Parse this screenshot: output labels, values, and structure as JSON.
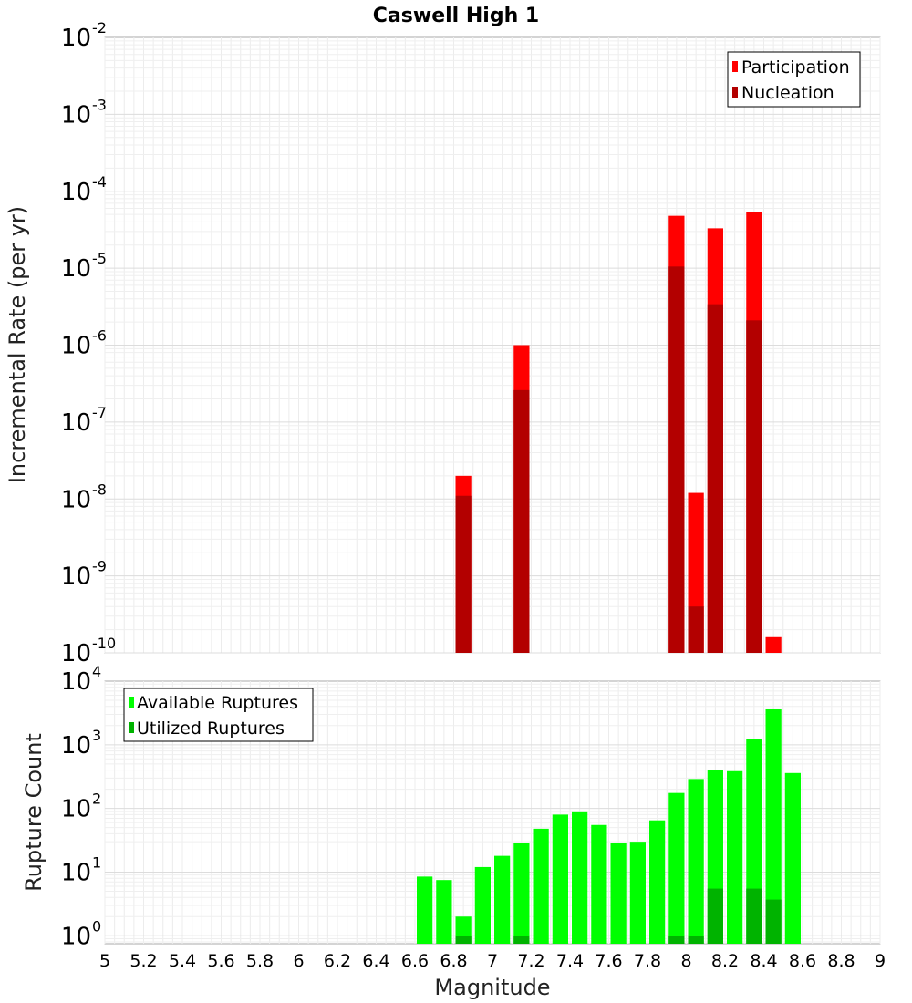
{
  "title": "Caswell High 1",
  "colors": {
    "participation": "#ff0000",
    "nucleation": "#b30000",
    "available": "#00ff00",
    "utilized": "#00b300"
  },
  "chart_data": [
    {
      "type": "bar",
      "scale": "log",
      "ylabel": "Incremental Rate (per yr)",
      "ylim": [
        1e-10,
        0.01
      ],
      "y_ticks": [
        {
          "base": "10",
          "exp": "-10"
        },
        {
          "base": "10",
          "exp": "-9"
        },
        {
          "base": "10",
          "exp": "-8"
        },
        {
          "base": "10",
          "exp": "-7"
        },
        {
          "base": "10",
          "exp": "-6"
        },
        {
          "base": "10",
          "exp": "-5"
        },
        {
          "base": "10",
          "exp": "-4"
        },
        {
          "base": "10",
          "exp": "-3"
        },
        {
          "base": "10",
          "exp": "-2"
        }
      ],
      "xlim": [
        5,
        9
      ],
      "grid": true,
      "legend_position": "top-right",
      "series": [
        {
          "name": "Participation",
          "x": [
            6.85,
            7.15,
            7.95,
            8.05,
            8.15,
            8.35,
            8.45
          ],
          "values": [
            2e-08,
            1e-06,
            4.8e-05,
            1.2e-08,
            3.3e-05,
            5.4e-05,
            1.6e-10
          ]
        },
        {
          "name": "Nucleation",
          "x": [
            6.85,
            7.15,
            7.95,
            8.05,
            8.15,
            8.35
          ],
          "values": [
            1.1e-08,
            2.6e-07,
            1.05e-05,
            4e-10,
            3.4e-06,
            2.1e-06
          ]
        }
      ]
    },
    {
      "type": "bar",
      "scale": "log",
      "ylabel": "Rupture Count",
      "xlabel": "Magnitude",
      "ylim": [
        0.75,
        10000
      ],
      "y_ticks": [
        {
          "base": "10",
          "exp": "0"
        },
        {
          "base": "10",
          "exp": "1"
        },
        {
          "base": "10",
          "exp": "2"
        },
        {
          "base": "10",
          "exp": "3"
        },
        {
          "base": "10",
          "exp": "4"
        }
      ],
      "xlim": [
        5,
        9
      ],
      "x_ticks": [
        "5",
        "5.2",
        "5.4",
        "5.6",
        "5.8",
        "6",
        "6.2",
        "6.4",
        "6.6",
        "6.8",
        "7",
        "7.2",
        "7.4",
        "7.6",
        "7.8",
        "8",
        "8.2",
        "8.4",
        "8.6",
        "8.8",
        "9"
      ],
      "grid": true,
      "legend_position": "top-left",
      "series": [
        {
          "name": "Available Ruptures",
          "x": [
            6.65,
            6.75,
            6.85,
            6.95,
            7.05,
            7.15,
            7.25,
            7.35,
            7.45,
            7.55,
            7.65,
            7.75,
            7.85,
            7.95,
            8.05,
            8.15,
            8.25,
            8.35,
            8.45,
            8.55
          ],
          "values": [
            8.5,
            7.5,
            2,
            12,
            18,
            29,
            48,
            80,
            90,
            55,
            29,
            30,
            65,
            175,
            290,
            400,
            385,
            1250,
            3600,
            360
          ]
        },
        {
          "name": "Utilized Ruptures",
          "x": [
            6.85,
            7.15,
            7.95,
            8.05,
            8.15,
            8.35,
            8.45
          ],
          "values": [
            1,
            1,
            1,
            1,
            5.5,
            5.5,
            3.7
          ]
        }
      ]
    }
  ]
}
